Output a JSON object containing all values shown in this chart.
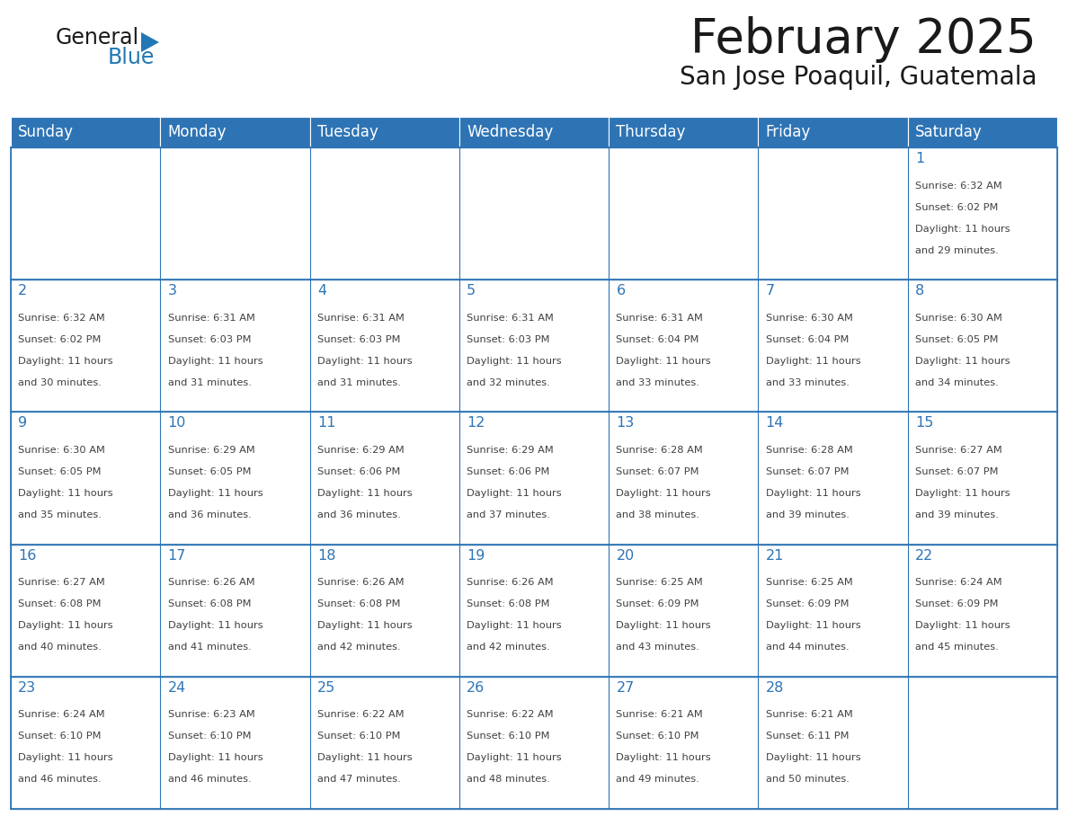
{
  "title": "February 2025",
  "subtitle": "San Jose Poaquil, Guatemala",
  "days_of_week": [
    "Sunday",
    "Monday",
    "Tuesday",
    "Wednesday",
    "Thursday",
    "Friday",
    "Saturday"
  ],
  "header_bg": "#2E74B5",
  "header_text": "#FFFFFF",
  "cell_bg": "#FFFFFF",
  "border_color": "#2E74B5",
  "day_num_color": "#2E74B5",
  "info_color": "#404040",
  "title_color": "#1A1A1A",
  "logo_general_color": "#1A1A1A",
  "logo_blue_color": "#2278B4",
  "calendar_data": [
    [
      null,
      null,
      null,
      null,
      null,
      null,
      {
        "day": 1,
        "sunrise": "6:32 AM",
        "sunset": "6:02 PM",
        "daylight": "11 hours and 29 minutes."
      }
    ],
    [
      {
        "day": 2,
        "sunrise": "6:32 AM",
        "sunset": "6:02 PM",
        "daylight": "11 hours and 30 minutes."
      },
      {
        "day": 3,
        "sunrise": "6:31 AM",
        "sunset": "6:03 PM",
        "daylight": "11 hours and 31 minutes."
      },
      {
        "day": 4,
        "sunrise": "6:31 AM",
        "sunset": "6:03 PM",
        "daylight": "11 hours and 31 minutes."
      },
      {
        "day": 5,
        "sunrise": "6:31 AM",
        "sunset": "6:03 PM",
        "daylight": "11 hours and 32 minutes."
      },
      {
        "day": 6,
        "sunrise": "6:31 AM",
        "sunset": "6:04 PM",
        "daylight": "11 hours and 33 minutes."
      },
      {
        "day": 7,
        "sunrise": "6:30 AM",
        "sunset": "6:04 PM",
        "daylight": "11 hours and 33 minutes."
      },
      {
        "day": 8,
        "sunrise": "6:30 AM",
        "sunset": "6:05 PM",
        "daylight": "11 hours and 34 minutes."
      }
    ],
    [
      {
        "day": 9,
        "sunrise": "6:30 AM",
        "sunset": "6:05 PM",
        "daylight": "11 hours and 35 minutes."
      },
      {
        "day": 10,
        "sunrise": "6:29 AM",
        "sunset": "6:05 PM",
        "daylight": "11 hours and 36 minutes."
      },
      {
        "day": 11,
        "sunrise": "6:29 AM",
        "sunset": "6:06 PM",
        "daylight": "11 hours and 36 minutes."
      },
      {
        "day": 12,
        "sunrise": "6:29 AM",
        "sunset": "6:06 PM",
        "daylight": "11 hours and 37 minutes."
      },
      {
        "day": 13,
        "sunrise": "6:28 AM",
        "sunset": "6:07 PM",
        "daylight": "11 hours and 38 minutes."
      },
      {
        "day": 14,
        "sunrise": "6:28 AM",
        "sunset": "6:07 PM",
        "daylight": "11 hours and 39 minutes."
      },
      {
        "day": 15,
        "sunrise": "6:27 AM",
        "sunset": "6:07 PM",
        "daylight": "11 hours and 39 minutes."
      }
    ],
    [
      {
        "day": 16,
        "sunrise": "6:27 AM",
        "sunset": "6:08 PM",
        "daylight": "11 hours and 40 minutes."
      },
      {
        "day": 17,
        "sunrise": "6:26 AM",
        "sunset": "6:08 PM",
        "daylight": "11 hours and 41 minutes."
      },
      {
        "day": 18,
        "sunrise": "6:26 AM",
        "sunset": "6:08 PM",
        "daylight": "11 hours and 42 minutes."
      },
      {
        "day": 19,
        "sunrise": "6:26 AM",
        "sunset": "6:08 PM",
        "daylight": "11 hours and 42 minutes."
      },
      {
        "day": 20,
        "sunrise": "6:25 AM",
        "sunset": "6:09 PM",
        "daylight": "11 hours and 43 minutes."
      },
      {
        "day": 21,
        "sunrise": "6:25 AM",
        "sunset": "6:09 PM",
        "daylight": "11 hours and 44 minutes."
      },
      {
        "day": 22,
        "sunrise": "6:24 AM",
        "sunset": "6:09 PM",
        "daylight": "11 hours and 45 minutes."
      }
    ],
    [
      {
        "day": 23,
        "sunrise": "6:24 AM",
        "sunset": "6:10 PM",
        "daylight": "11 hours and 46 minutes."
      },
      {
        "day": 24,
        "sunrise": "6:23 AM",
        "sunset": "6:10 PM",
        "daylight": "11 hours and 46 minutes."
      },
      {
        "day": 25,
        "sunrise": "6:22 AM",
        "sunset": "6:10 PM",
        "daylight": "11 hours and 47 minutes."
      },
      {
        "day": 26,
        "sunrise": "6:22 AM",
        "sunset": "6:10 PM",
        "daylight": "11 hours and 48 minutes."
      },
      {
        "day": 27,
        "sunrise": "6:21 AM",
        "sunset": "6:10 PM",
        "daylight": "11 hours and 49 minutes."
      },
      {
        "day": 28,
        "sunrise": "6:21 AM",
        "sunset": "6:11 PM",
        "daylight": "11 hours and 50 minutes."
      },
      null
    ]
  ]
}
